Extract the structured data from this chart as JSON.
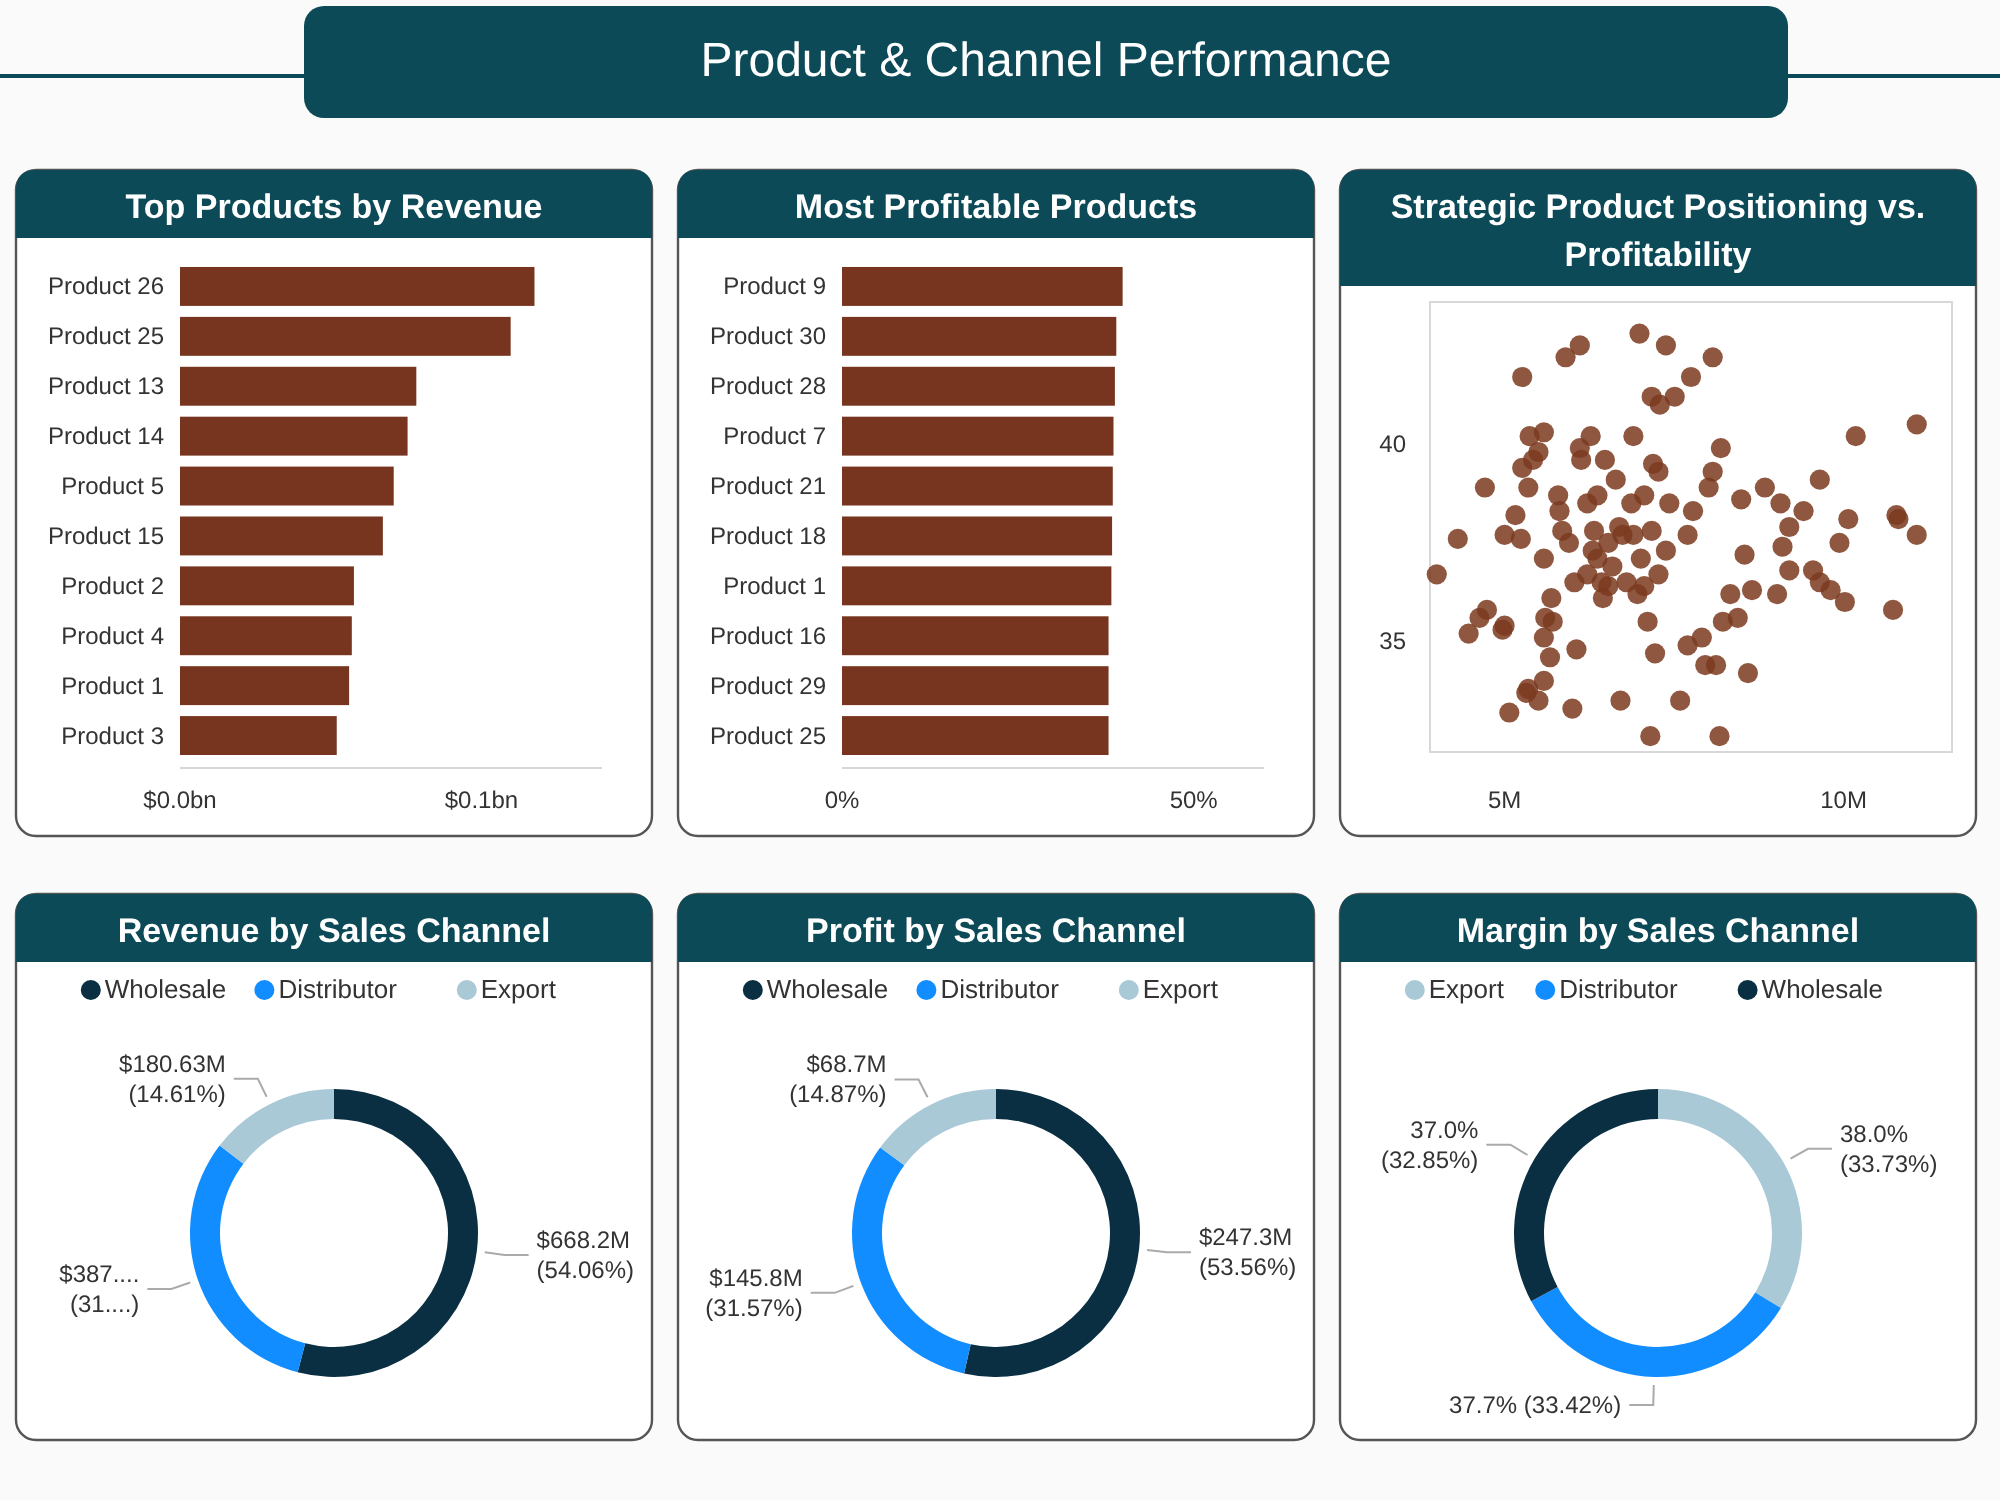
{
  "chart_data": [
    {
      "type": "other",
      "title": "Product & Channel Performance"
    },
    {
      "type": "bar",
      "title": "Top Products by Revenue",
      "orientation": "horizontal",
      "categories": [
        "Product 26",
        "Product 25",
        "Product 13",
        "Product 14",
        "Product 5",
        "Product 15",
        "Product 2",
        "Product 4",
        "Product 1",
        "Product 3"
      ],
      "values": [
        0.1176,
        0.1097,
        0.0784,
        0.0755,
        0.0709,
        0.0673,
        0.0577,
        0.057,
        0.0561,
        0.052
      ],
      "color": "#773520",
      "xlim": [
        0,
        0.14
      ],
      "xticks": [
        {
          "value": 0,
          "label": "$0.0bn"
        },
        {
          "value": 0.1,
          "label": "$0.1bn"
        }
      ]
    },
    {
      "type": "bar",
      "title": "Most Profitable Products",
      "orientation": "horizontal",
      "categories": [
        "Product 9",
        "Product 30",
        "Product 28",
        "Product 7",
        "Product 21",
        "Product 18",
        "Product 1",
        "Product 16",
        "Product 29",
        "Product 25"
      ],
      "values": [
        39.9,
        39.0,
        38.8,
        38.6,
        38.5,
        38.4,
        38.3,
        37.9,
        37.9,
        37.9
      ],
      "color": "#773520",
      "xlim": [
        0,
        60
      ],
      "xticks": [
        {
          "value": 0,
          "label": "0%"
        },
        {
          "value": 50,
          "label": "50%"
        }
      ]
    },
    {
      "type": "scatter",
      "title": "Strategic Product Positioning vs. Profitability",
      "marker": "circle",
      "color": "#7b3a1e",
      "xlim": [
        3.9,
        11.6
      ],
      "ylim": [
        32.2,
        43.6
      ],
      "xticks": [
        {
          "value": 5,
          "label": "5M"
        },
        {
          "value": 10,
          "label": "10M"
        }
      ],
      "yticks": [
        35,
        40
      ],
      "x": [
        4.0,
        4.31,
        4.47,
        4.63,
        4.71,
        4.74,
        4.97,
        5.0,
        5.07,
        5.0,
        5.16,
        5.24,
        5.26,
        5.32,
        5.35,
        5.26,
        5.35,
        5.37,
        5.42,
        5.5,
        5.58,
        5.5,
        5.58,
        5.6,
        5.58,
        5.67,
        5.58,
        5.71,
        5.69,
        5.79,
        5.81,
        5.85,
        5.9,
        6.11,
        5.95,
        6.0,
        6.03,
        6.06,
        6.11,
        6.13,
        6.27,
        6.22,
        6.32,
        6.3,
        6.37,
        6.43,
        6.45,
        6.48,
        6.53,
        6.59,
        6.64,
        6.71,
        6.74,
        6.8,
        6.87,
        6.9,
        6.99,
        7.06,
        7.06,
        7.11,
        7.17,
        7.19,
        7.22,
        7.27,
        7.29,
        7.38,
        7.38,
        7.43,
        7.51,
        7.59,
        7.7,
        7.7,
        7.75,
        7.78,
        7.91,
        7.96,
        8.01,
        8.07,
        8.07,
        8.12,
        8.17,
        8.19,
        8.22,
        8.33,
        8.44,
        8.49,
        8.54,
        8.59,
        8.65,
        8.84,
        9.02,
        9.07,
        9.1,
        9.2,
        9.2,
        9.41,
        9.55,
        9.65,
        9.65,
        9.81,
        10.02,
        9.94,
        10.07,
        10.18,
        10.73,
        10.78,
        10.81,
        11.08,
        11.08,
        7.15,
        6.69,
        6.53,
        7.01,
        6.9,
        7.17,
        7.27,
        6.37,
        6.22,
        6.96
      ],
      "values": [
        36.7,
        37.6,
        35.2,
        35.6,
        38.9,
        35.8,
        35.3,
        35.4,
        33.2,
        37.7,
        38.2,
        37.6,
        41.7,
        33.7,
        33.8,
        39.4,
        38.9,
        40.2,
        39.6,
        39.8,
        40.3,
        33.5,
        37.1,
        35.6,
        35.1,
        34.6,
        34.0,
        35.5,
        36.1,
        38.7,
        38.3,
        37.8,
        42.2,
        42.5,
        37.5,
        33.3,
        36.5,
        34.8,
        39.9,
        39.6,
        40.2,
        38.5,
        37.8,
        37.3,
        38.7,
        36.5,
        36.1,
        39.6,
        37.5,
        36.9,
        39.1,
        33.5,
        37.7,
        36.5,
        38.5,
        40.2,
        42.8,
        38.7,
        36.4,
        35.5,
        41.2,
        39.5,
        34.7,
        39.3,
        41.0,
        42.5,
        37.3,
        38.5,
        41.2,
        33.5,
        37.7,
        34.9,
        41.7,
        38.3,
        35.1,
        34.4,
        38.9,
        42.2,
        39.3,
        34.4,
        32.6,
        39.9,
        35.5,
        36.2,
        35.6,
        38.6,
        37.2,
        34.2,
        36.3,
        38.9,
        36.2,
        38.5,
        37.4,
        37.9,
        36.8,
        38.3,
        36.8,
        39.1,
        36.5,
        36.3,
        36.0,
        37.5,
        38.1,
        40.2,
        35.8,
        38.2,
        38.1,
        37.7,
        40.5,
        32.6,
        37.9,
        36.4,
        37.1,
        37.7,
        37.8,
        36.7,
        37.1,
        36.7,
        36.2
      ]
    },
    {
      "type": "donut",
      "title": "Revenue by Sales Channel",
      "legend": "top",
      "categories": [
        "Wholesale",
        "Distributor",
        "Export"
      ],
      "values": [
        54.06,
        31.33,
        14.61
      ],
      "colors": [
        "#0a2f42",
        "#118dff",
        "#a9c9d6"
      ],
      "value_labels": [
        "$668.2M (54.06%)",
        "$387.... (31....)",
        "$180.63M (14.61%)"
      ]
    },
    {
      "type": "donut",
      "title": "Profit by Sales Channel",
      "legend": "top",
      "categories": [
        "Wholesale",
        "Distributor",
        "Export"
      ],
      "values": [
        53.56,
        31.57,
        14.87
      ],
      "colors": [
        "#0a2f42",
        "#118dff",
        "#a9c9d6"
      ],
      "value_labels": [
        "$247.3M (53.56%)",
        "$145.8M (31.57%)",
        "$68.7M (14.87%)"
      ]
    },
    {
      "type": "donut",
      "title": "Margin by Sales Channel",
      "legend": "top",
      "categories": [
        "Export",
        "Distributor",
        "Wholesale"
      ],
      "values": [
        33.73,
        33.42,
        32.85
      ],
      "colors": [
        "#a9c9d6",
        "#118dff",
        "#0a2f42"
      ],
      "value_labels": [
        "38.0% (33.73%)",
        "37.7% (33.42%)",
        "37.0% (32.85%)"
      ]
    }
  ]
}
